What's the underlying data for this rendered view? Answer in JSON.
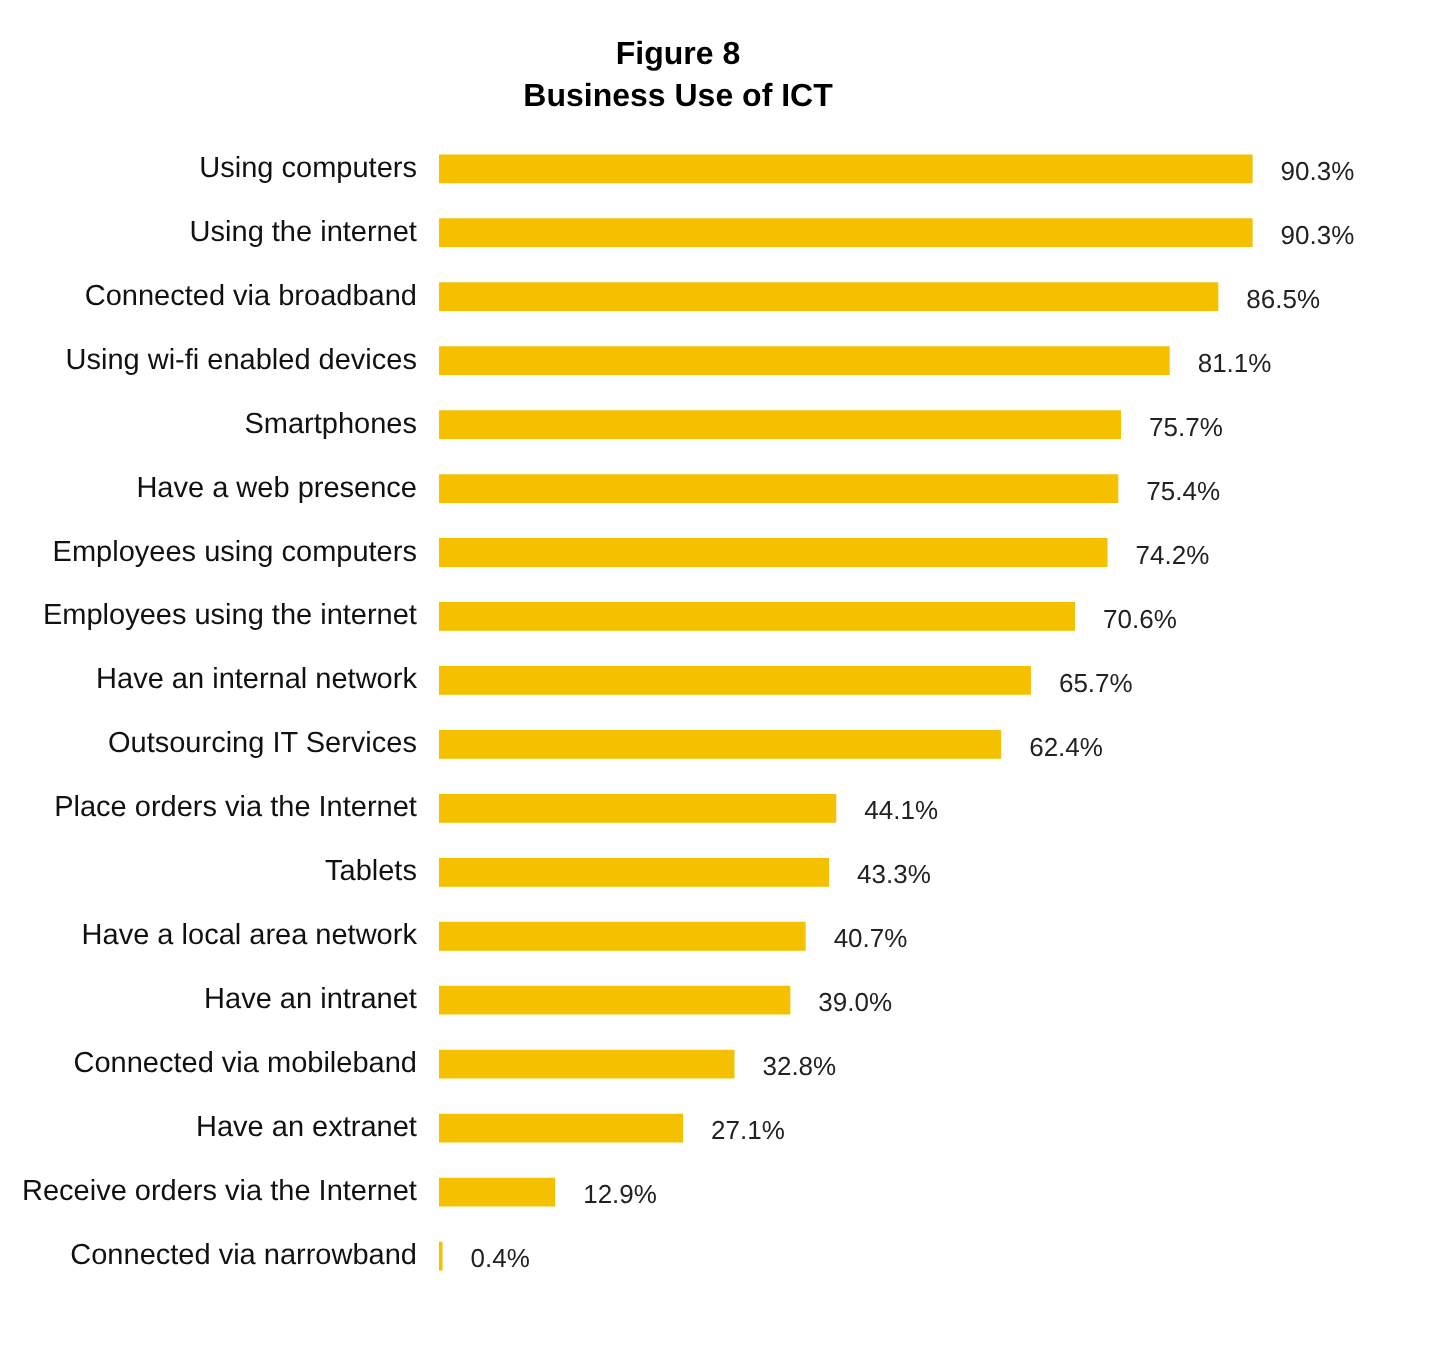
{
  "chart_data": {
    "type": "bar",
    "orientation": "horizontal",
    "title": "Figure 8",
    "subtitle": "Business Use of ICT",
    "categories": [
      "Using computers",
      "Using the internet",
      "Connected via broadband",
      "Using wi-fi enabled devices",
      "Smartphones",
      "Have a web presence",
      "Employees using computers",
      "Employees using the internet",
      "Have an internal network",
      "Outsourcing IT Services",
      "Place orders via the Internet",
      "Tablets",
      "Have a local area network",
      "Have an intranet",
      "Connected via mobileband",
      "Have an extranet",
      "Receive orders via the Internet",
      "Connected via narrowband"
    ],
    "values": [
      90.3,
      90.3,
      86.5,
      81.1,
      75.7,
      75.4,
      74.2,
      70.6,
      65.7,
      62.4,
      44.1,
      43.3,
      40.7,
      39.0,
      32.8,
      27.1,
      12.9,
      0.4
    ],
    "value_labels": [
      "90.3%",
      "90.3%",
      "86.5%",
      "81.1%",
      "75.7%",
      "75.4%",
      "74.2%",
      "70.6%",
      "65.7%",
      "62.4%",
      "44.1%",
      "43.3%",
      "40.7%",
      "39.0%",
      "32.8%",
      "27.1%",
      "12.9%",
      "0.4%"
    ],
    "color": "#f5c000",
    "legend": false
  }
}
